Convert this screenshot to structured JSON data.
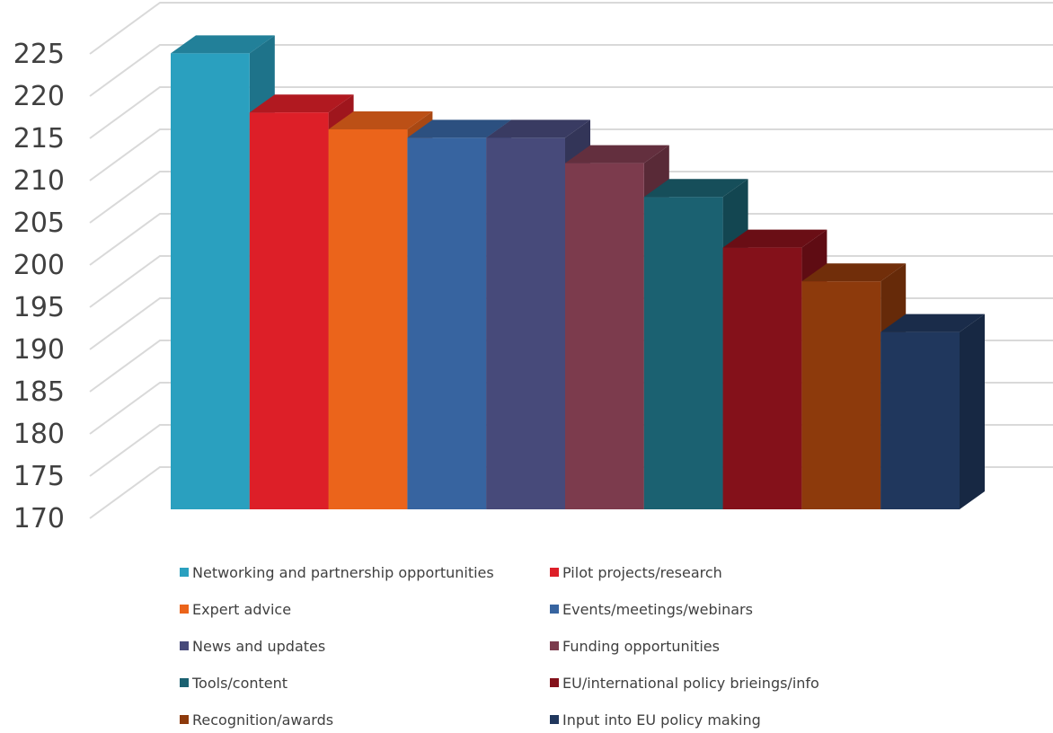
{
  "chart_data": {
    "type": "bar",
    "title": "",
    "xlabel": "",
    "ylabel": "",
    "ylim": [
      170,
      230
    ],
    "y_ticks": [
      "170",
      "175",
      "180",
      "185",
      "190",
      "195",
      "200",
      "205",
      "210",
      "215",
      "220",
      "225"
    ],
    "grid": true,
    "legend_position": "bottom",
    "categories": [
      "Networking and partnership opportunities",
      "Pilot projects/research",
      "Expert advice",
      "Events/meetings/webinars",
      "News and updates",
      "Funding opportunities",
      "Tools/content",
      "EU/international policy brieings/info",
      "Recognition/awards",
      "Input into EU policy making"
    ],
    "values": [
      224,
      217,
      215,
      214,
      214,
      211,
      207,
      201,
      197,
      191
    ],
    "colors": [
      "#2aa0bf",
      "#dd1f28",
      "#eb641b",
      "#3764a0",
      "#474a7a",
      "#7c3b4d",
      "#1b6171",
      "#84111a",
      "#8d3a0c",
      "#20375d"
    ]
  }
}
